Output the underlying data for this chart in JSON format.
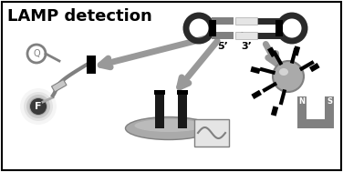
{
  "title": "LAMP detection",
  "title_fontsize": 13,
  "bg_color": "#ffffff",
  "border_color": "#000000",
  "gray_dark": "#2a2a2a",
  "gray_mid": "#808080",
  "gray_light": "#aaaaaa",
  "gray_lighter": "#c8c8c8",
  "gray_lightest": "#e5e5e5",
  "label_5prime": "5’",
  "label_3prime": "3’",
  "arrow_color": "#999999",
  "arrow_lw": 5
}
